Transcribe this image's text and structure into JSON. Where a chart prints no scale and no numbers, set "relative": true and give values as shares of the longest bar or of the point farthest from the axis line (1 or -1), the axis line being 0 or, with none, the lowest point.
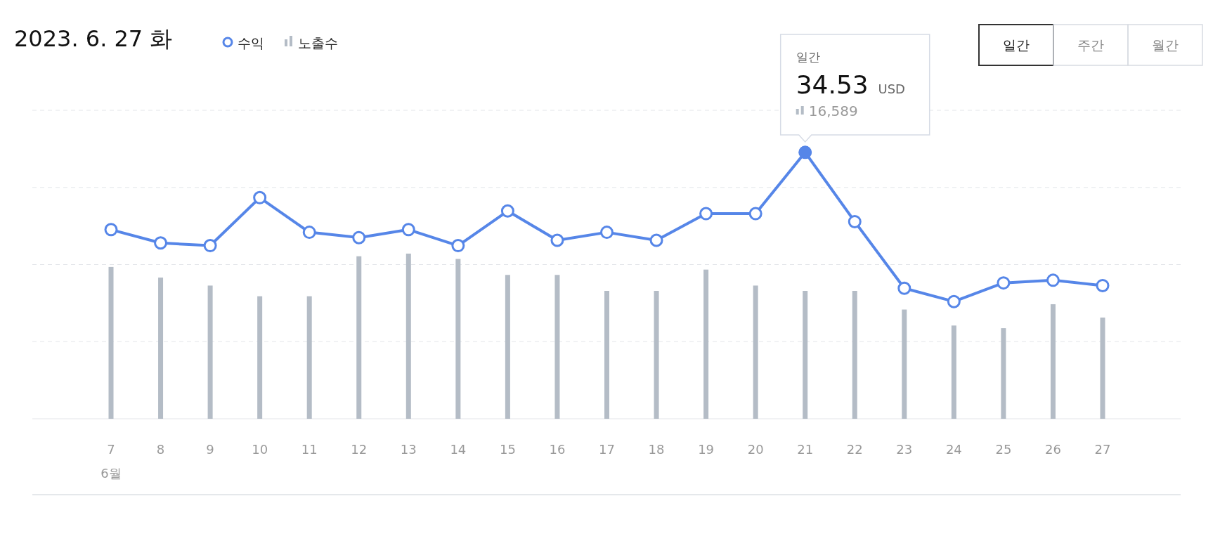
{
  "chart_data": {
    "type": "line",
    "title": "2023. 6. 27 화",
    "categories": [
      "7",
      "8",
      "9",
      "10",
      "11",
      "12",
      "13",
      "14",
      "15",
      "16",
      "17",
      "18",
      "19",
      "20",
      "21",
      "22",
      "23",
      "24",
      "25",
      "26",
      "27"
    ],
    "series": [
      {
        "name": "수익",
        "color": "#5686e8",
        "values": [
          0.71,
          0.66,
          0.65,
          0.83,
          0.7,
          0.68,
          0.71,
          0.65,
          0.78,
          0.67,
          0.7,
          0.67,
          0.77,
          0.77,
          1,
          0.74,
          0.49,
          0.44,
          0.51,
          0.52,
          0.5
        ]
      },
      {
        "name": "노출수",
        "type": "bar",
        "color": "#b4bcc6",
        "values": [
          0.57,
          0.53,
          0.5,
          0.46,
          0.46,
          0.61,
          0.62,
          0.6,
          0.54,
          0.54,
          0.48,
          0.48,
          0.56,
          0.5,
          0.48,
          0.48,
          0.41,
          0.35,
          0.34,
          0.43,
          0.38
        ]
      }
    ],
    "relative": true,
    "legend": "top",
    "grid": "y",
    "marker": "circle",
    "line_style": "solid",
    "annotations": [
      "일간",
      "34.53 USD",
      "16,589",
      "6월",
      "일간",
      "주간",
      "월간"
    ]
  }
}
